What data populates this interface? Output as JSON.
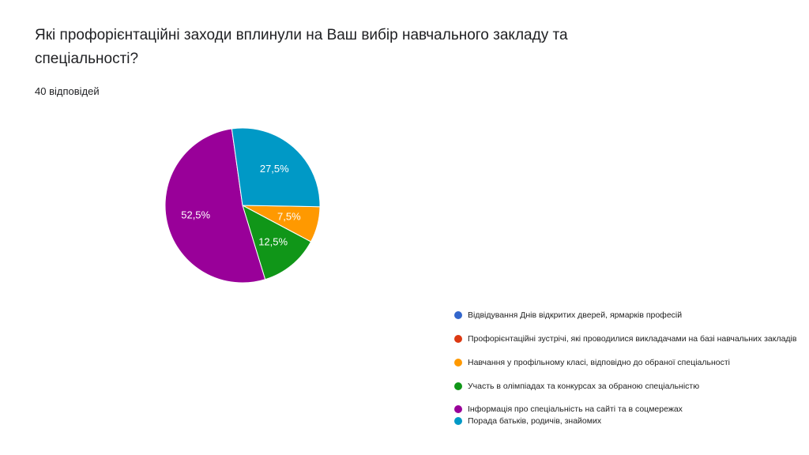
{
  "chart_data": {
    "type": "pie",
    "title": "Які профорієнтаційні заходи вплинули на Ваш вибір навчального закладу та спеціальності?",
    "subtitle": "40 відповідей",
    "categories": [
      "Відвідування Днів відкритих дверей, ярмарків професій",
      "Профорієнтаційні зустрічі, які проводилися викладачами на базі навчальних закладів",
      "Навчання у профільному класі, відповідно до обраної спеціальності",
      "Участь в олімпіадах та конкурсах за обраною спеціальністю",
      "Інформація про спеціальність на сайті та в соцмережах",
      "Порада батьків, родичів, знайомих"
    ],
    "values": [
      0,
      0,
      7.5,
      12.5,
      52.5,
      27.5
    ],
    "value_labels": [
      null,
      null,
      "7,5%",
      "12,5%",
      "52,5%",
      "27,5%"
    ],
    "colors": [
      "#3366cc",
      "#dc3912",
      "#ff9900",
      "#109618",
      "#990099",
      "#0099c6"
    ],
    "legend": "right"
  }
}
